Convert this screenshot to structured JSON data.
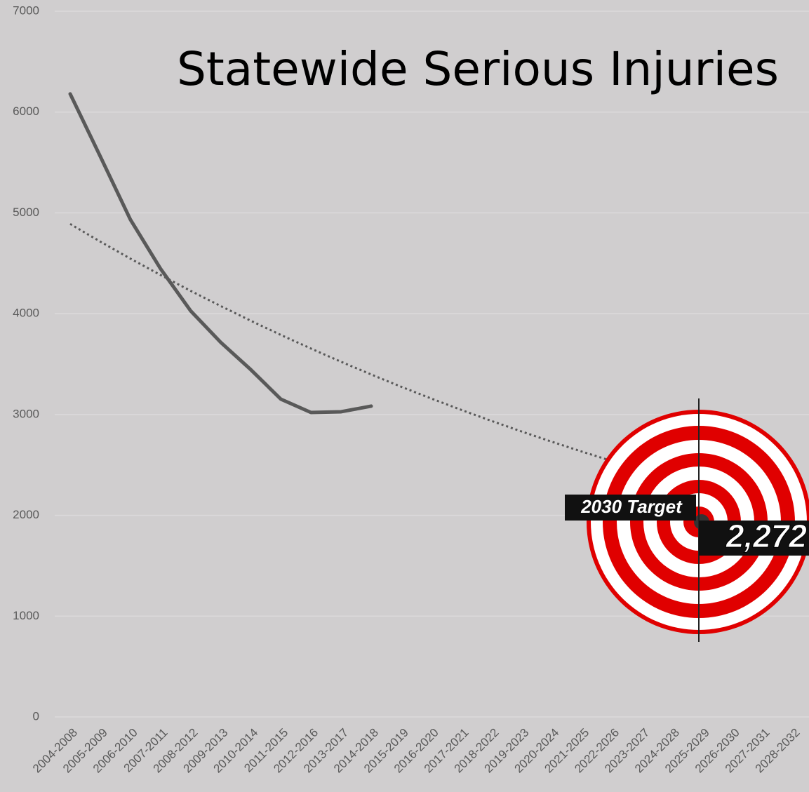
{
  "chart_data": {
    "type": "line",
    "title": "Statewide Serious Injuries",
    "categories": [
      "2004-2008",
      "2005-2009",
      "2006-2010",
      "2007-2011",
      "2008-2012",
      "2009-2013",
      "2010-2014",
      "2011-2015",
      "2012-2016",
      "2013-2017",
      "2014-2018",
      "2015-2019",
      "2016-2020",
      "2017-2021",
      "2018-2022",
      "2019-2023",
      "2020-2024",
      "2021-2025",
      "2022-2026",
      "2023-2027",
      "2024-2028",
      "2025-2029",
      "2026-2030",
      "2027-2031",
      "2028-2032"
    ],
    "series": [
      {
        "color": "#595959",
        "style": "solid",
        "values": [
          6180,
          5560,
          4934,
          4447,
          4029,
          3716,
          3445,
          3152,
          3020,
          3027,
          3083,
          null,
          null,
          null,
          null,
          null,
          null,
          null,
          null,
          null,
          null,
          null,
          null,
          null,
          null
        ]
      },
      {
        "color": "#595959",
        "style": "dotted",
        "values": [
          4890,
          4715,
          4546,
          4384,
          4227,
          4076,
          3930,
          3789,
          3654,
          3523,
          3397,
          3275,
          3158,
          3045,
          2936,
          2831,
          2730,
          2632,
          2538,
          2447,
          2360,
          2272,
          null,
          null,
          null
        ]
      }
    ],
    "ylim": [
      0,
      7000
    ],
    "yticks": [
      0,
      1000,
      2000,
      3000,
      4000,
      5000,
      6000,
      7000
    ],
    "grid": true,
    "annotations": [
      {
        "text": "2030 Target"
      },
      {
        "text": "2,272"
      }
    ]
  }
}
